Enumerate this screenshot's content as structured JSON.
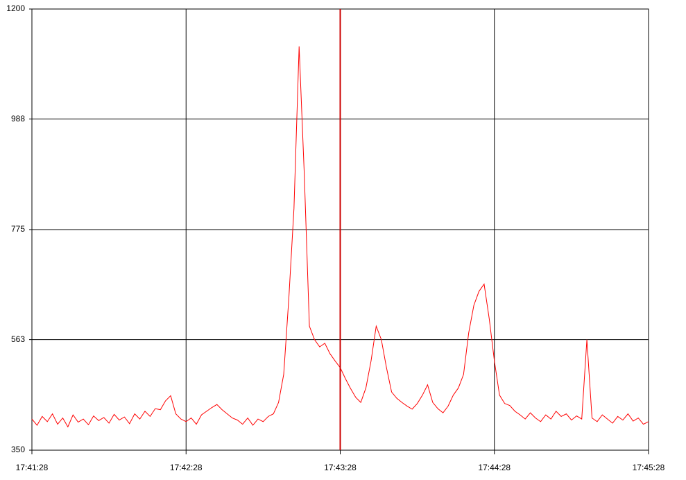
{
  "chart_data": {
    "type": "line",
    "x": [
      "17:41:28",
      "17:41:30",
      "17:41:32",
      "17:41:34",
      "17:41:36",
      "17:41:38",
      "17:41:40",
      "17:41:42",
      "17:41:44",
      "17:41:46",
      "17:41:48",
      "17:41:50",
      "17:41:52",
      "17:41:54",
      "17:41:56",
      "17:41:58",
      "17:42:00",
      "17:42:02",
      "17:42:04",
      "17:42:06",
      "17:42:08",
      "17:42:10",
      "17:42:12",
      "17:42:14",
      "17:42:16",
      "17:42:18",
      "17:42:20",
      "17:42:22",
      "17:42:24",
      "17:42:26",
      "17:42:28",
      "17:42:30",
      "17:42:32",
      "17:42:34",
      "17:42:36",
      "17:42:38",
      "17:42:40",
      "17:42:42",
      "17:42:44",
      "17:42:46",
      "17:42:48",
      "17:42:50",
      "17:42:52",
      "17:42:54",
      "17:42:56",
      "17:42:58",
      "17:43:00",
      "17:43:02",
      "17:43:04",
      "17:43:06",
      "17:43:08",
      "17:43:10",
      "17:43:12",
      "17:43:14",
      "17:43:16",
      "17:43:18",
      "17:43:20",
      "17:43:22",
      "17:43:24",
      "17:43:26",
      "17:43:28",
      "17:43:30",
      "17:43:32",
      "17:43:34",
      "17:43:36",
      "17:43:38",
      "17:43:40",
      "17:43:42",
      "17:43:44",
      "17:43:46",
      "17:43:48",
      "17:43:50",
      "17:43:52",
      "17:43:54",
      "17:43:56",
      "17:43:58",
      "17:44:00",
      "17:44:02",
      "17:44:04",
      "17:44:06",
      "17:44:08",
      "17:44:10",
      "17:44:12",
      "17:44:14",
      "17:44:16",
      "17:44:18",
      "17:44:20",
      "17:44:22",
      "17:44:24",
      "17:44:26",
      "17:44:28",
      "17:44:30",
      "17:44:32",
      "17:44:34",
      "17:44:36",
      "17:44:38",
      "17:44:40",
      "17:44:42",
      "17:44:44",
      "17:44:46",
      "17:44:48",
      "17:44:50",
      "17:44:52",
      "17:44:54",
      "17:44:56",
      "17:44:58",
      "17:45:00",
      "17:45:02",
      "17:45:04",
      "17:45:06",
      "17:45:08",
      "17:45:10",
      "17:45:12",
      "17:45:14",
      "17:45:16",
      "17:45:18",
      "17:45:20",
      "17:45:22",
      "17:45:24",
      "17:45:26",
      "17:45:28"
    ],
    "series": [
      {
        "color": "#ff0000",
        "values": [
          410,
          398,
          415,
          405,
          420,
          400,
          412,
          395,
          418,
          404,
          410,
          399,
          416,
          407,
          413,
          402,
          419,
          408,
          414,
          401,
          420,
          410,
          425,
          415,
          430,
          428,
          445,
          455,
          420,
          410,
          405,
          412,
          400,
          418,
          425,
          432,
          438,
          428,
          420,
          412,
          408,
          400,
          412,
          398,
          410,
          405,
          415,
          420,
          442,
          496,
          643,
          816,
          1128,
          883,
          589,
          563,
          549,
          556,
          536,
          522,
          509,
          488,
          469,
          452,
          442,
          470,
          522,
          589,
          563,
          509,
          462,
          450,
          442,
          435,
          429,
          440,
          456,
          476,
          442,
          430,
          422,
          435,
          456,
          470,
          496,
          576,
          629,
          656,
          670,
          603,
          522,
          456,
          440,
          436,
          425,
          418,
          410,
          422,
          412,
          405,
          418,
          410,
          425,
          415,
          420,
          408,
          416,
          410,
          563,
          412,
          405,
          418,
          410,
          402,
          415,
          408,
          420,
          406,
          412,
          400,
          405
        ]
      }
    ],
    "xlim": [
      "17:41:28",
      "17:45:28"
    ],
    "xticks": [
      "17:41:28",
      "17:42:28",
      "17:43:28",
      "17:44:28",
      "17:45:28"
    ],
    "ylim": [
      350,
      1200
    ],
    "yticks": [
      350,
      563,
      775,
      988,
      1200
    ],
    "grid": true,
    "cursor": "17:43:28",
    "cursor_color": "#cc0000"
  }
}
